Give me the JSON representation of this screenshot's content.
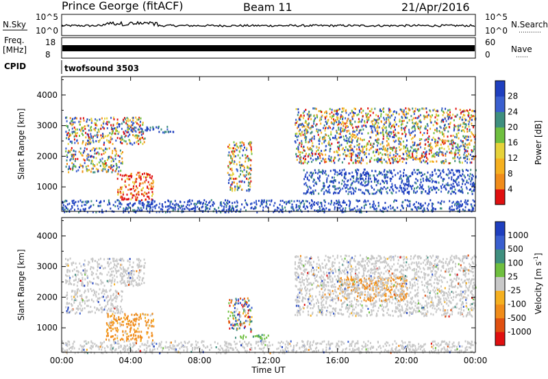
{
  "header": {
    "station": "Prince George (fitACF)",
    "beam": "Beam 11",
    "date": "21/Apr/2016"
  },
  "noise_panel": {
    "left_label": "N.Sky",
    "left_ticks": [
      "10^5",
      "10^0"
    ],
    "right_label": "N.Search",
    "right_ticks": [
      "10^5",
      "10^0"
    ]
  },
  "freq_panel": {
    "left_label_1": "Freq.",
    "left_label_2": "[MHz]",
    "left_ticks": [
      "18",
      "8"
    ],
    "right_label": "Nave",
    "right_ticks": [
      "60",
      "0"
    ]
  },
  "cpid_panel": {
    "label": "CPID",
    "value": "twofsound 3503"
  },
  "colors": {
    "blue_dark": "#1f3fbf",
    "blue_mid": "#3a5fcf",
    "teal": "#3f8f7f",
    "green": "#6fbf3f",
    "yellow": "#e6d23a",
    "orange": "#f08c1a",
    "red": "#e01010",
    "gray": "#c8c8c8"
  },
  "chart_data": [
    {
      "type": "heatmap",
      "name": "power",
      "ylabel": "Slant Range [km]",
      "xlabel": "",
      "y_ticks": [
        1000,
        2000,
        3000,
        4000
      ],
      "ylim": [
        200,
        4600
      ],
      "x_ticks": [
        "00:00",
        "04:00",
        "08:00",
        "12:00",
        "16:00",
        "20:00",
        "00:00"
      ],
      "xlim_hours": [
        0,
        24
      ],
      "colorbar": {
        "label": "Power [dB]",
        "ticks": [
          "4",
          "8",
          "12",
          "16",
          "20",
          "24",
          "28"
        ],
        "colors": [
          "#1f3fbf",
          "#3a5fcf",
          "#3f8f7f",
          "#6fbf3f",
          "#e6d23a",
          "#f5b020",
          "#f08c1a",
          "#e01010"
        ]
      },
      "clusters": [
        {
          "t0": 0.2,
          "t1": 4.8,
          "r0": 2400,
          "r1": 3300,
          "color": "mix"
        },
        {
          "t0": 0.2,
          "t1": 3.5,
          "r0": 1500,
          "r1": 2300,
          "color": "mix"
        },
        {
          "t0": 3.2,
          "t1": 5.3,
          "r0": 600,
          "r1": 1500,
          "color": "hot"
        },
        {
          "t0": 4.0,
          "t1": 6.5,
          "r0": 2800,
          "r1": 3000,
          "color": "cool"
        },
        {
          "t0": 9.6,
          "t1": 11.0,
          "r0": 900,
          "r1": 2500,
          "color": "mix"
        },
        {
          "t0": 13.5,
          "t1": 24.0,
          "r0": 1800,
          "r1": 3600,
          "color": "mix"
        },
        {
          "t0": 14.0,
          "t1": 24.0,
          "r0": 800,
          "r1": 1600,
          "color": "cool"
        },
        {
          "t0": 0.0,
          "t1": 24.0,
          "r0": 200,
          "r1": 600,
          "color": "cool"
        }
      ]
    },
    {
      "type": "heatmap",
      "name": "velocity",
      "ylabel": "Slant Range [km]",
      "xlabel": "Time UT",
      "y_ticks": [
        1000,
        2000,
        3000,
        4000
      ],
      "ylim": [
        200,
        4600
      ],
      "x_ticks": [
        "00:00",
        "04:00",
        "08:00",
        "12:00",
        "16:00",
        "20:00",
        "00:00"
      ],
      "xlim_hours": [
        0,
        24
      ],
      "colorbar": {
        "label": "Velocity [m s",
        "label_sup": "-1",
        "label_end": "]",
        "ticks": [
          "1000",
          "500",
          "100",
          "25",
          "-25",
          "-100",
          "-500",
          "-1000"
        ],
        "colors": [
          "#1f3fbf",
          "#3a5fcf",
          "#3f8f7f",
          "#6fbf3f",
          "#c8c8c8",
          "#f5b020",
          "#f08c1a",
          "#e05010",
          "#e01010"
        ]
      },
      "clusters": [
        {
          "t0": 0.2,
          "t1": 4.8,
          "r0": 2400,
          "r1": 3300,
          "color": "gray"
        },
        {
          "t0": 0.2,
          "t1": 3.5,
          "r0": 1500,
          "r1": 2300,
          "color": "gray"
        },
        {
          "t0": 2.5,
          "t1": 5.3,
          "r0": 600,
          "r1": 1500,
          "color": "orange"
        },
        {
          "t0": 9.6,
          "t1": 11.0,
          "r0": 900,
          "r1": 2000,
          "color": "mixv"
        },
        {
          "t0": 10.0,
          "t1": 12.0,
          "r0": 650,
          "r1": 800,
          "color": "green"
        },
        {
          "t0": 16.0,
          "t1": 20.0,
          "r0": 1900,
          "r1": 2700,
          "color": "orange"
        },
        {
          "t0": 13.5,
          "t1": 24.0,
          "r0": 1400,
          "r1": 3400,
          "color": "gray"
        },
        {
          "t0": 0.0,
          "t1": 24.0,
          "r0": 200,
          "r1": 600,
          "color": "gray"
        }
      ]
    }
  ]
}
